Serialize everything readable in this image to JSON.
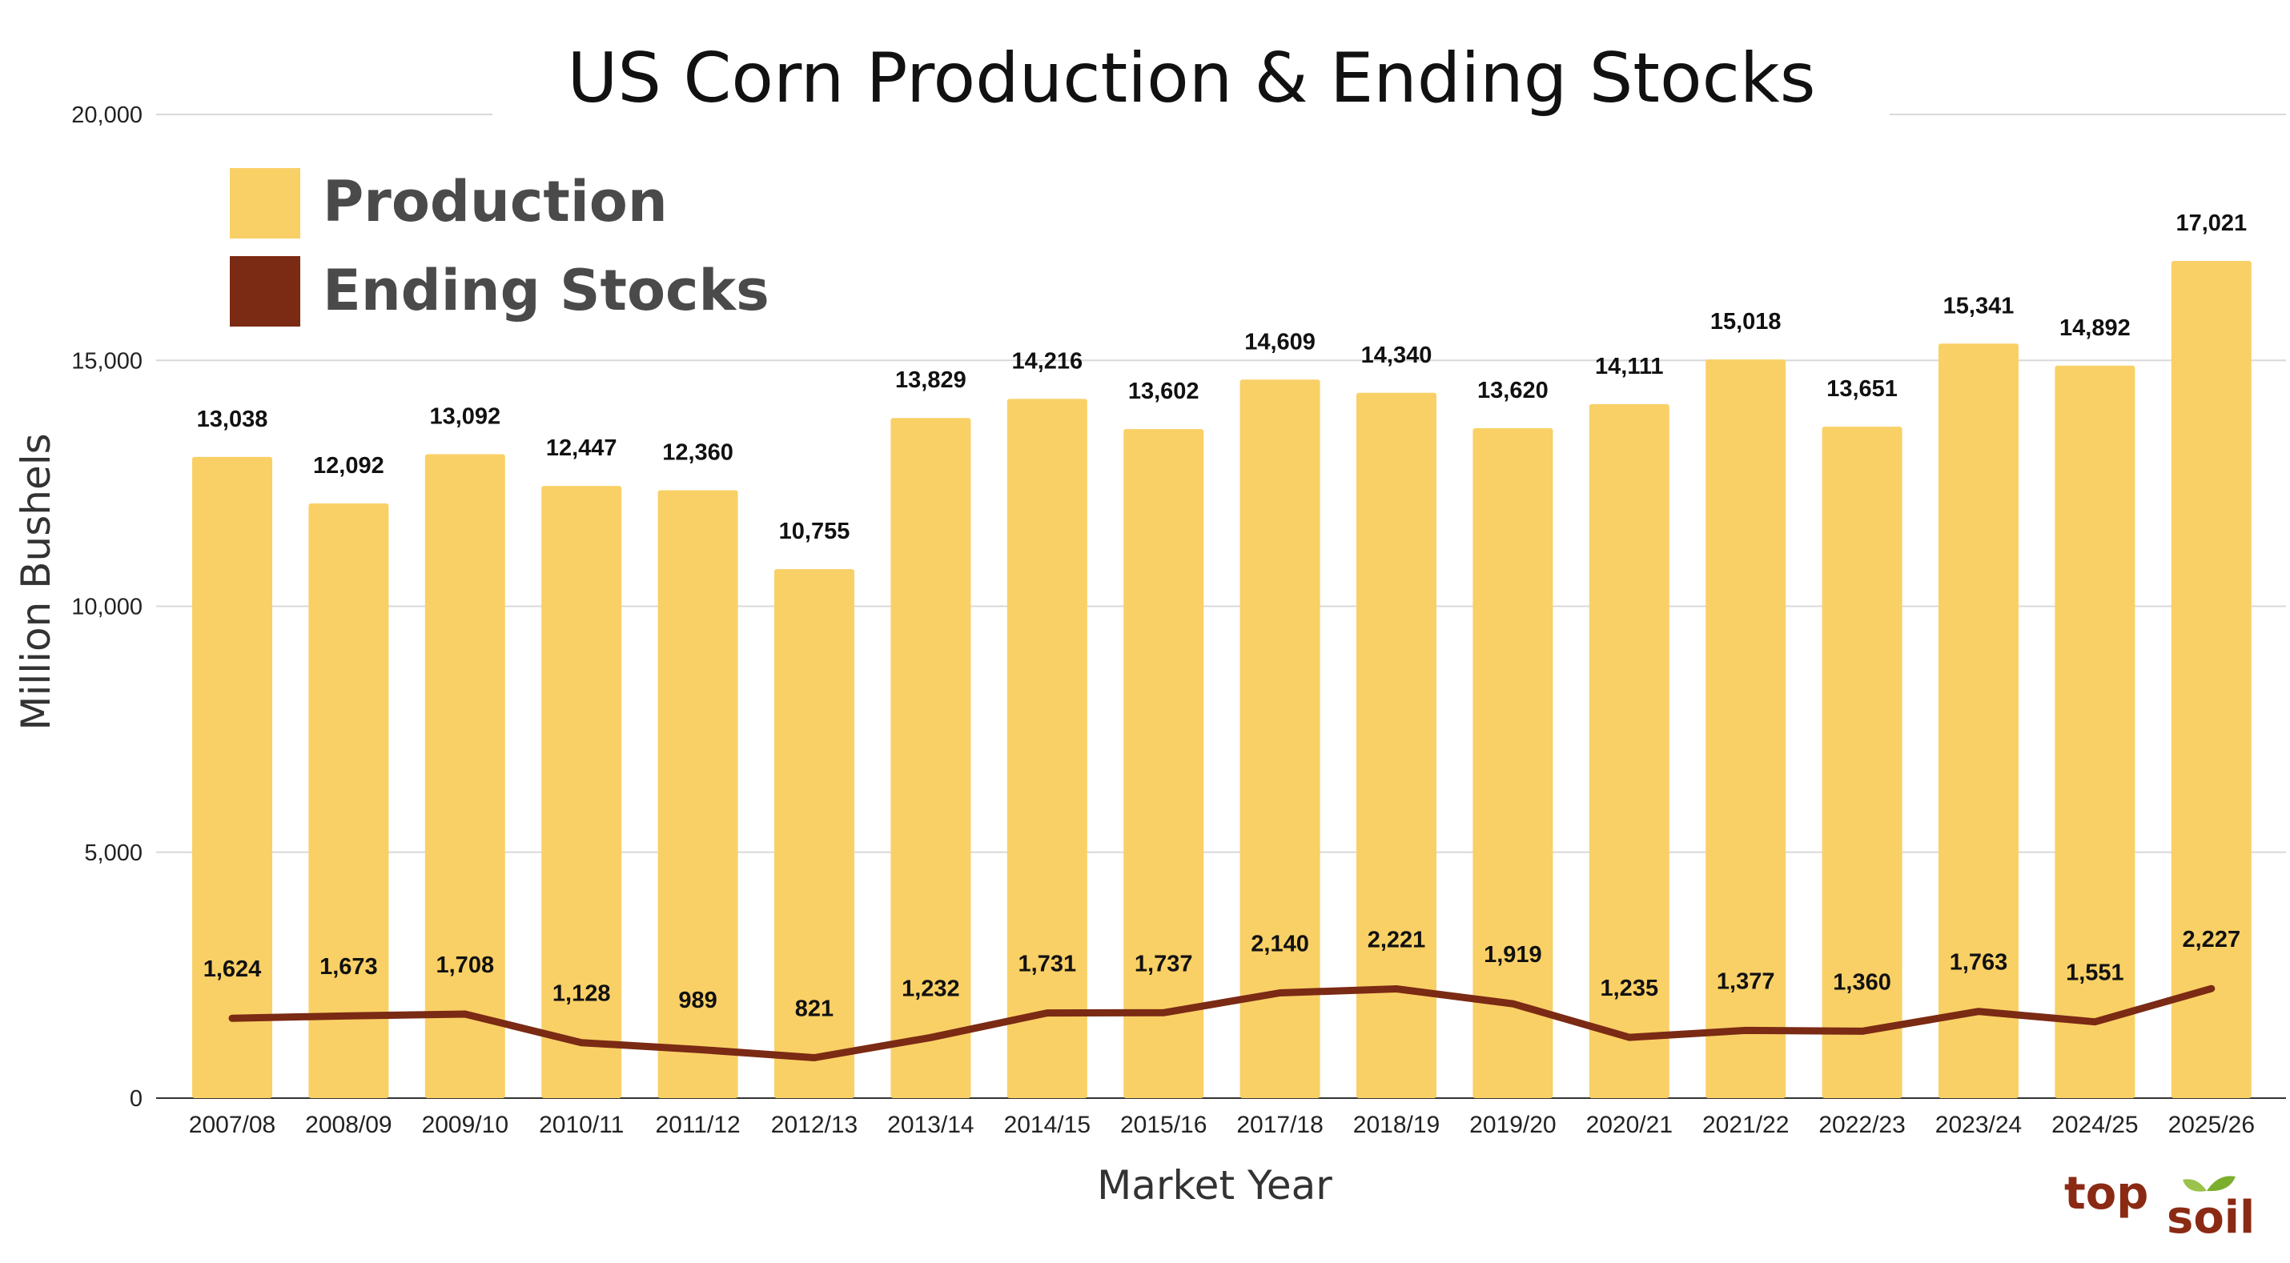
{
  "chart_data": {
    "type": "bar",
    "title": "US Corn Production & Ending Stocks",
    "xlabel": "Market Year",
    "ylabel": "Million Bushels",
    "ylim": [
      0,
      20000
    ],
    "yticks": [
      0,
      5000,
      10000,
      15000,
      20000
    ],
    "ytick_labels": [
      "0",
      "5,000",
      "10,000",
      "15,000",
      "20,000"
    ],
    "grid": true,
    "legend_position": "top-left",
    "categories": [
      "2007/08",
      "2008/09",
      "2009/10",
      "2010/11",
      "2011/12",
      "2012/13",
      "2013/14",
      "2014/15",
      "2015/16",
      "2017/18",
      "2018/19",
      "2019/20",
      "2020/21",
      "2021/22",
      "2022/23",
      "2023/24",
      "2024/25",
      "2025/26"
    ],
    "series": [
      {
        "name": "Production",
        "kind": "bar",
        "color": "#f9d066",
        "values": [
          13038,
          12092,
          13092,
          12447,
          12360,
          10755,
          13829,
          14216,
          13602,
          14609,
          14340,
          13620,
          14111,
          15018,
          13651,
          15341,
          14892,
          17021
        ],
        "labels": [
          "13,038",
          "12,092",
          "13,092",
          "12,447",
          "12,360",
          "10,755",
          "13,829",
          "14,216",
          "13,602",
          "14,609",
          "14,340",
          "13,620",
          "14,111",
          "15,018",
          "13,651",
          "15,341",
          "14,892",
          "17,021"
        ]
      },
      {
        "name": "Ending Stocks",
        "kind": "line",
        "color": "#7b2a14",
        "values": [
          1624,
          1673,
          1708,
          1128,
          989,
          821,
          1232,
          1731,
          1737,
          2140,
          2221,
          1919,
          1235,
          1377,
          1360,
          1763,
          1551,
          2227
        ],
        "labels": [
          "1,624",
          "1,673",
          "1,708",
          "1,128",
          "989",
          "821",
          "1,232",
          "1,731",
          "1,737",
          "2,140",
          "2,221",
          "1,919",
          "1,235",
          "1,377",
          "1,360",
          "1,763",
          "1,551",
          "2,227"
        ]
      }
    ]
  },
  "logo": {
    "text_top": "top",
    "text_bottom": "soil"
  }
}
